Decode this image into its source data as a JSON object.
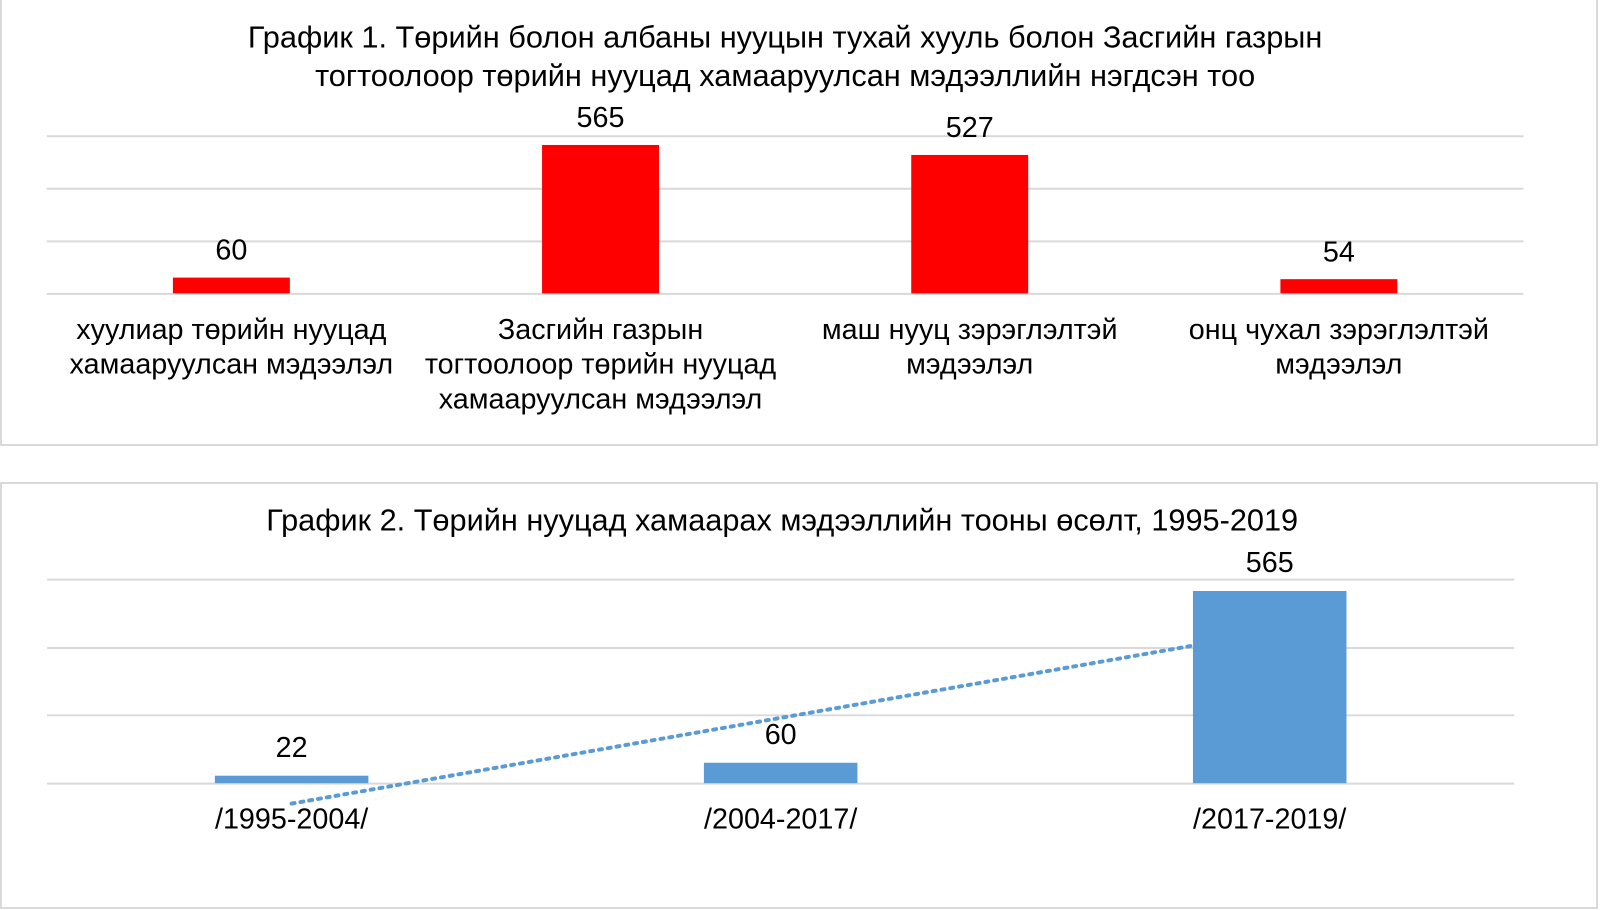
{
  "chart_data": [
    {
      "type": "bar",
      "title_lines": [
        "График 1. Төрийн болон албаны нууцын тухай хууль болон Засгийн газрын",
        "тогтоолоор төрийн нууцад хамааруулсан мэдээллийн нэгдсэн тоо"
      ],
      "categories": [
        [
          "хуулиар төрийн нууцад",
          "хамааруулсан мэдээлэл"
        ],
        [
          "Засгийн газрын",
          "тогтоолоор төрийн нууцад",
          "хамааруулсан мэдээлэл"
        ],
        [
          "маш нууц зэрэглэлтэй",
          "мэдээлэл"
        ],
        [
          "онц чухал зэрэглэлтэй",
          "мэдээлэл"
        ]
      ],
      "values": [
        60,
        565,
        527,
        54
      ],
      "data_labels": [
        "60",
        "565",
        "527",
        "54"
      ],
      "bar_color": "#ff0000",
      "ylim": [
        0,
        600
      ],
      "gridlines": [
        0,
        200,
        400,
        600
      ],
      "grid": true,
      "legend": "none"
    },
    {
      "type": "bar",
      "title_lines": [
        "График 2. Төрийн нууцад хамаарах мэдээллийн тооны өсөлт, 1995-2019"
      ],
      "categories": [
        [
          "/1995-2004/"
        ],
        [
          "/2004-2017/"
        ],
        [
          "/2017-2019/"
        ]
      ],
      "values": [
        22,
        60,
        565
      ],
      "data_labels": [
        "22",
        "60",
        "565"
      ],
      "bar_color": "#5b9bd5",
      "ylim": [
        0,
        600
      ],
      "gridlines": [
        0,
        200,
        400,
        600
      ],
      "grid": true,
      "legend": "none",
      "trendline": {
        "style": "dotted",
        "color": "#5b9bd5",
        "start_value": -60,
        "end_value": 444
      }
    }
  ]
}
